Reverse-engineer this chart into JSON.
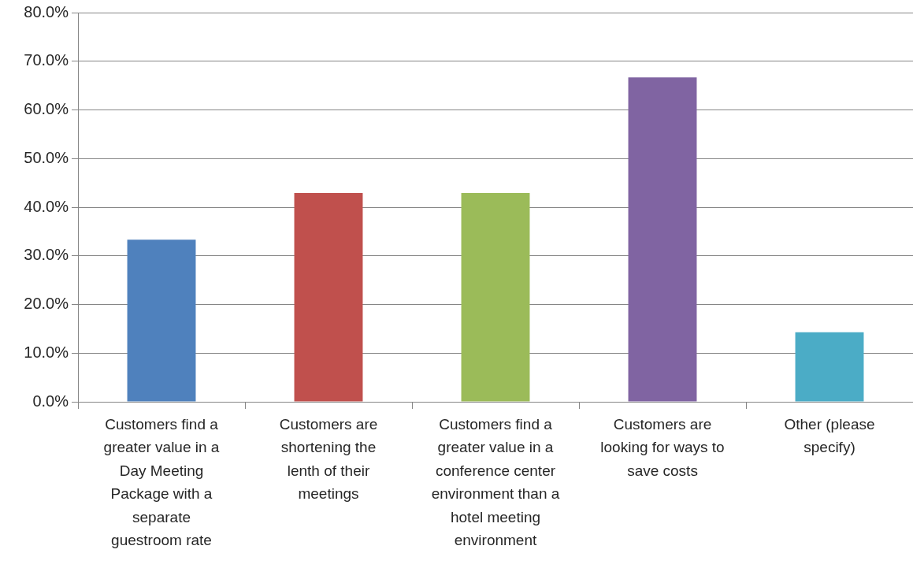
{
  "chart_data": {
    "type": "bar",
    "categories": [
      "Customers find a greater value in a Day Meeting Package with a separate guestroom rate",
      "Customers are shortening the lenth of their meetings",
      "Customers find a greater value in a conference center environment than a hotel meeting environment",
      "Customers are looking for ways to save costs",
      "Other (please specify)"
    ],
    "values": [
      33.3,
      42.9,
      42.9,
      66.7,
      14.3
    ],
    "colors": [
      "#4f81bd",
      "#c0504d",
      "#9bbb59",
      "#8064a2",
      "#4bacc6"
    ],
    "ylim": [
      0,
      80
    ],
    "yticks": [
      {
        "value": 0,
        "label": "0.0%"
      },
      {
        "value": 10,
        "label": "10.0%"
      },
      {
        "value": 20,
        "label": "20.0%"
      },
      {
        "value": 30,
        "label": "30.0%"
      },
      {
        "value": 40,
        "label": "40.0%"
      },
      {
        "value": 50,
        "label": "50.0%"
      },
      {
        "value": 60,
        "label": "60.0%"
      },
      {
        "value": 70,
        "label": "70.0%"
      },
      {
        "value": 80,
        "label": "80.0%"
      }
    ],
    "grid": "y"
  }
}
